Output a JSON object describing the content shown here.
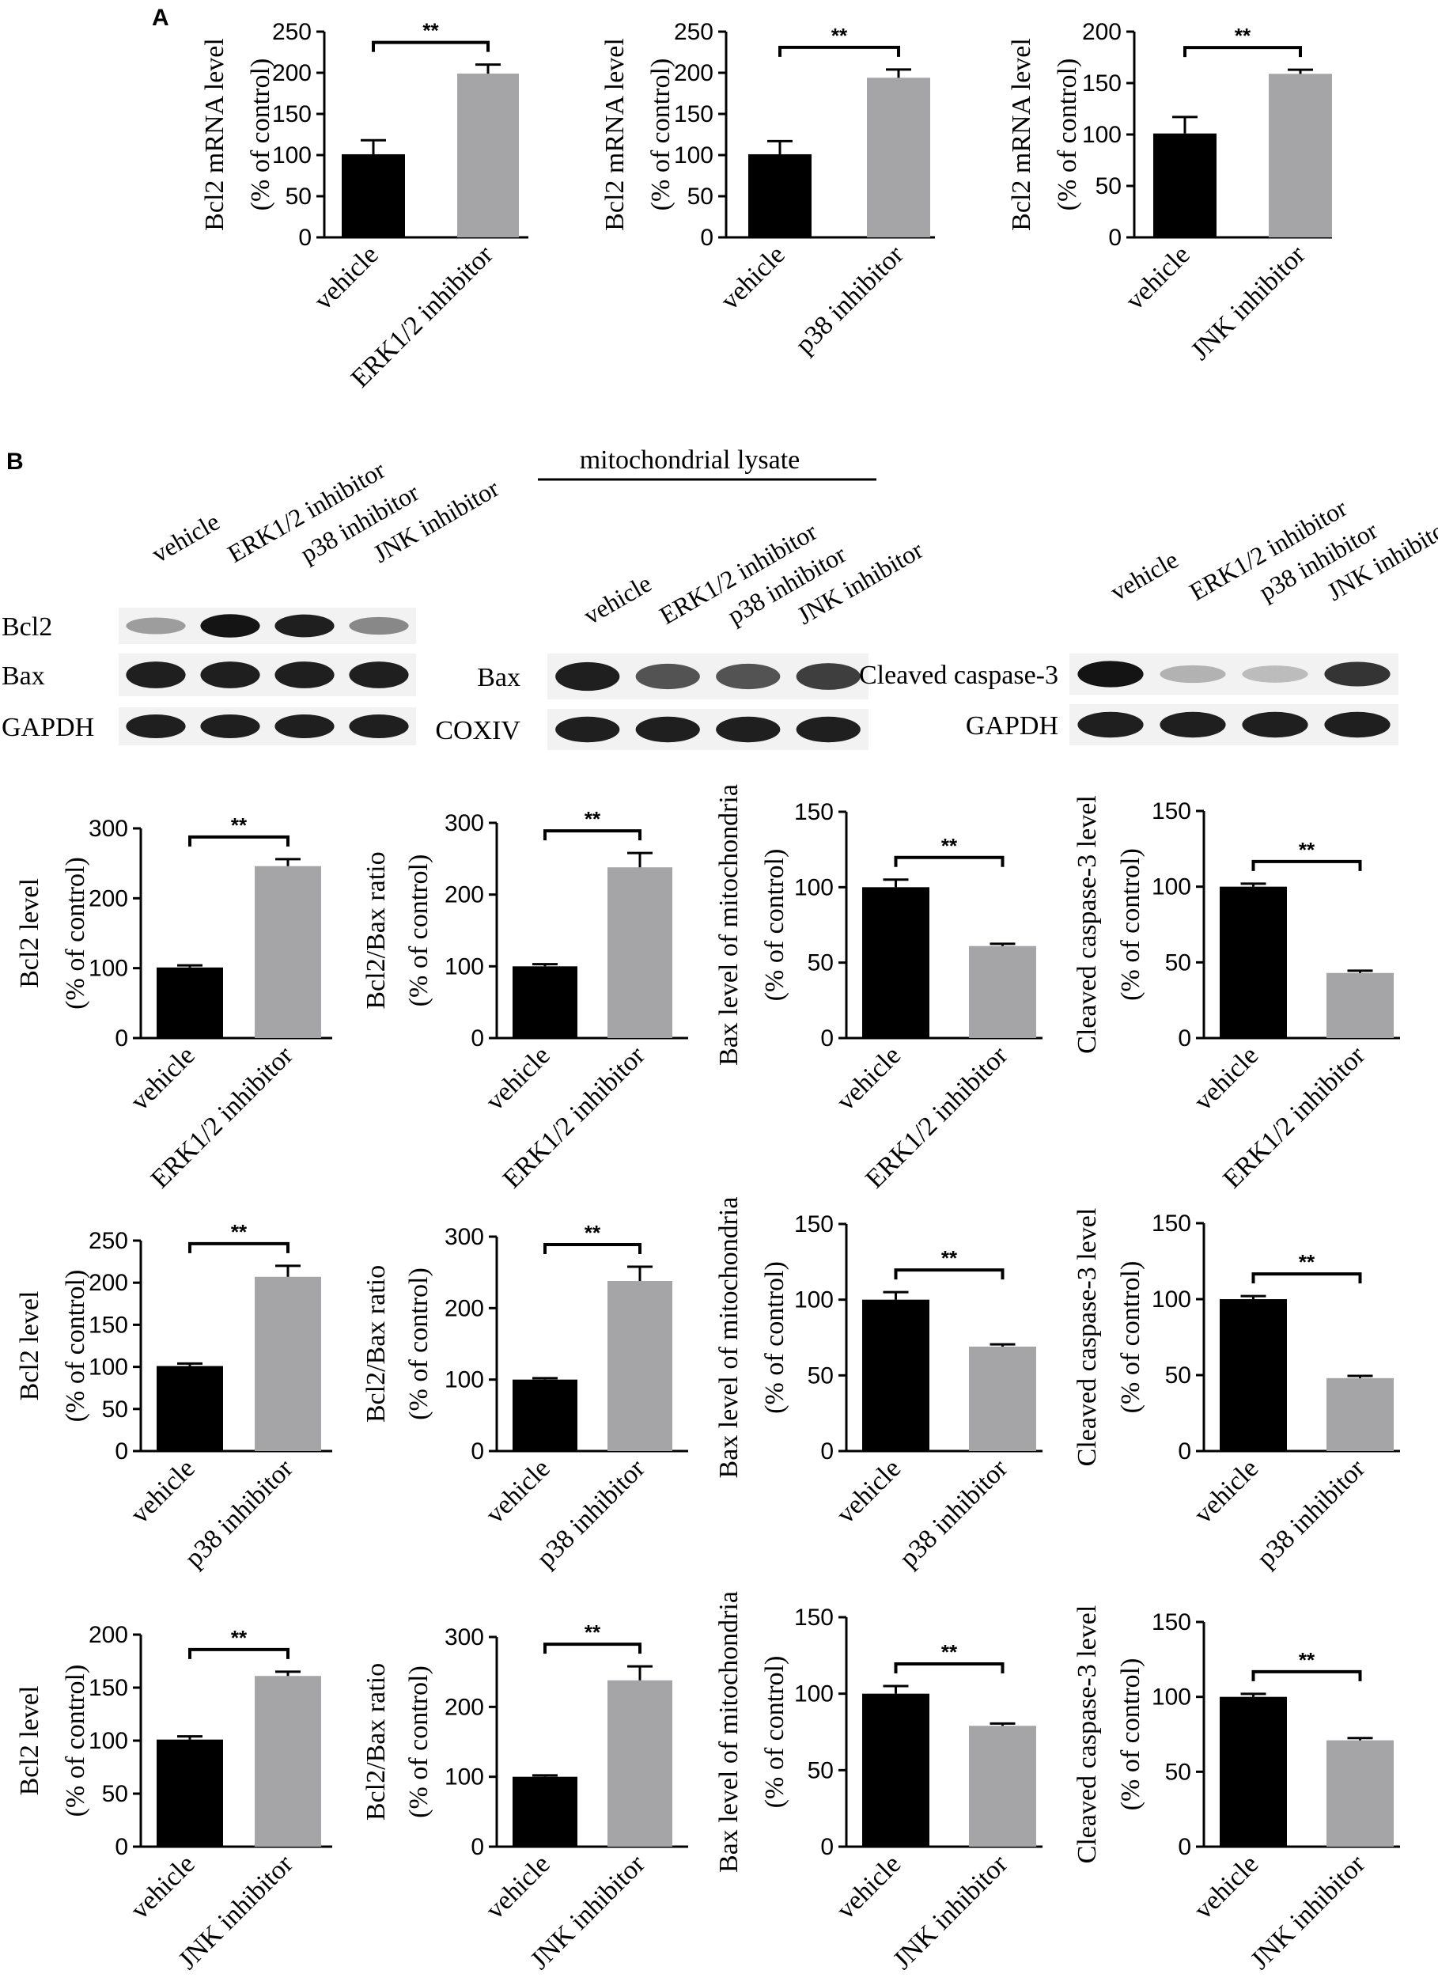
{
  "panels": {
    "A": "A",
    "B": "B"
  },
  "blots": {
    "whole": {
      "lanes": [
        "vehicle",
        "ERK1/2 inhibitor",
        "p38 inhibitor",
        "JNK inhibitor"
      ],
      "rows": [
        {
          "label": "Bcl2",
          "intensity": [
            0.35,
            1.0,
            0.95,
            0.45
          ]
        },
        {
          "label": "Bax",
          "intensity": [
            0.95,
            0.95,
            0.95,
            0.95
          ]
        },
        {
          "label": "GAPDH",
          "intensity": [
            0.95,
            0.95,
            0.95,
            0.95
          ]
        }
      ]
    },
    "mito": {
      "header": "mitochondrial lysate",
      "lanes": [
        "vehicle",
        "ERK1/2 inhibitor",
        "p38 inhibitor",
        "JNK inhibitor"
      ],
      "rows": [
        {
          "label": "Bax",
          "intensity": [
            0.95,
            0.7,
            0.7,
            0.8
          ]
        },
        {
          "label": "COXIV",
          "intensity": [
            0.95,
            0.95,
            0.95,
            0.95
          ]
        }
      ]
    },
    "caspase": {
      "lanes": [
        "vehicle",
        "ERK1/2 inhibitor",
        "p38 inhibitor",
        "JNK inhibitor"
      ],
      "rows": [
        {
          "label": "Cleaved caspase-3",
          "intensity": [
            1.0,
            0.25,
            0.2,
            0.85
          ]
        },
        {
          "label": "GAPDH",
          "intensity": [
            0.95,
            0.95,
            0.95,
            0.95
          ]
        }
      ]
    }
  },
  "chart_data": [
    {
      "type": "bar",
      "categories": [
        "vehicle",
        "ERK1/2 inhibitor"
      ],
      "values": [
        101,
        199
      ],
      "errors": [
        17,
        11
      ],
      "ylabel": "Bcl2 mRNA level",
      "ylabel2": "(% of control)",
      "ylim": [
        0,
        250
      ],
      "yticks": [
        0,
        50,
        100,
        150,
        200,
        250
      ],
      "significance": "**"
    },
    {
      "type": "bar",
      "categories": [
        "vehicle",
        "p38 inhibitor"
      ],
      "values": [
        101,
        194
      ],
      "errors": [
        16,
        10
      ],
      "ylabel": "Bcl2 mRNA level",
      "ylabel2": "(% of control)",
      "ylim": [
        0,
        250
      ],
      "yticks": [
        0,
        50,
        100,
        150,
        200,
        250
      ],
      "significance": "**"
    },
    {
      "type": "bar",
      "categories": [
        "vehicle",
        "JNK inhibitor"
      ],
      "values": [
        101,
        159
      ],
      "errors": [
        16,
        4
      ],
      "ylabel": "Bcl2 mRNA level",
      "ylabel2": "(% of control)",
      "ylim": [
        0,
        200
      ],
      "yticks": [
        0,
        50,
        100,
        150,
        200
      ],
      "significance": "**"
    },
    {
      "type": "bar",
      "categories": [
        "vehicle",
        "ERK1/2 inhibitor"
      ],
      "values": [
        101,
        246
      ],
      "errors": [
        3,
        10
      ],
      "ylabel": "Bcl2 level",
      "ylabel2": "(% of control)",
      "ylim": [
        0,
        300
      ],
      "yticks": [
        0,
        100,
        200,
        300
      ],
      "significance": "**"
    },
    {
      "type": "bar",
      "categories": [
        "vehicle",
        "ERK1/2 inhibitor"
      ],
      "values": [
        100,
        238
      ],
      "errors": [
        3,
        20
      ],
      "ylabel": "Bcl2/Bax ratio",
      "ylabel2": "(% of control)",
      "ylim": [
        0,
        300
      ],
      "yticks": [
        0,
        100,
        200,
        300
      ],
      "significance": "**"
    },
    {
      "type": "bar",
      "categories": [
        "vehicle",
        "ERK1/2 inhibitor"
      ],
      "values": [
        100,
        61
      ],
      "errors": [
        5,
        1.5
      ],
      "ylabel": "Bax level of mitochondria",
      "ylabel2": "(% of control)",
      "ylim": [
        0,
        150
      ],
      "yticks": [
        0,
        50,
        100,
        150
      ],
      "significance": "**"
    },
    {
      "type": "bar",
      "categories": [
        "vehicle",
        "ERK1/2 inhibitor"
      ],
      "values": [
        100,
        43
      ],
      "errors": [
        2,
        1.5
      ],
      "ylabel": "Cleaved caspase-3 level",
      "ylabel2": "(% of control)",
      "ylim": [
        0,
        150
      ],
      "yticks": [
        0,
        50,
        100,
        150
      ],
      "significance": "**"
    },
    {
      "type": "bar",
      "categories": [
        "vehicle",
        "p38 inhibitor"
      ],
      "values": [
        101,
        207
      ],
      "errors": [
        3,
        13
      ],
      "ylabel": "Bcl2 level",
      "ylabel2": "(% of control)",
      "ylim": [
        0,
        250
      ],
      "yticks": [
        0,
        50,
        100,
        150,
        200,
        250
      ],
      "significance": "**"
    },
    {
      "type": "bar",
      "categories": [
        "vehicle",
        "p38 inhibitor"
      ],
      "values": [
        100,
        238
      ],
      "errors": [
        2,
        20
      ],
      "ylabel": "Bcl2/Bax ratio",
      "ylabel2": "(% of control)",
      "ylim": [
        0,
        300
      ],
      "yticks": [
        0,
        100,
        200,
        300
      ],
      "significance": "**"
    },
    {
      "type": "bar",
      "categories": [
        "vehicle",
        "p38 inhibitor"
      ],
      "values": [
        100,
        69
      ],
      "errors": [
        5,
        1.5
      ],
      "ylabel": "Bax level of mitochondria",
      "ylabel2": "(% of control)",
      "ylim": [
        0,
        150
      ],
      "yticks": [
        0,
        50,
        100,
        150
      ],
      "significance": "**"
    },
    {
      "type": "bar",
      "categories": [
        "vehicle",
        "p38 inhibitor"
      ],
      "values": [
        100,
        48
      ],
      "errors": [
        2,
        1.5
      ],
      "ylabel": "Cleaved caspase-3 level",
      "ylabel2": "(% of control)",
      "ylim": [
        0,
        150
      ],
      "yticks": [
        0,
        50,
        100,
        150
      ],
      "significance": "**"
    },
    {
      "type": "bar",
      "categories": [
        "vehicle",
        "JNK inhibitor"
      ],
      "values": [
        101,
        161
      ],
      "errors": [
        3,
        4
      ],
      "ylabel": "Bcl2 level",
      "ylabel2": "(% of control)",
      "ylim": [
        0,
        200
      ],
      "yticks": [
        0,
        50,
        100,
        150,
        200
      ],
      "significance": "**"
    },
    {
      "type": "bar",
      "categories": [
        "vehicle",
        "JNK inhibitor"
      ],
      "values": [
        100,
        238
      ],
      "errors": [
        2,
        20
      ],
      "ylabel": "Bcl2/Bax ratio",
      "ylabel2": "(% of control)",
      "ylim": [
        0,
        300
      ],
      "yticks": [
        0,
        100,
        200,
        300
      ],
      "significance": "**"
    },
    {
      "type": "bar",
      "categories": [
        "vehicle",
        "JNK inhibitor"
      ],
      "values": [
        100,
        79
      ],
      "errors": [
        5,
        1.5
      ],
      "ylabel": "Bax level of mitochondria",
      "ylabel2": "(% of control)",
      "ylim": [
        0,
        150
      ],
      "yticks": [
        0,
        50,
        100,
        150
      ],
      "significance": "**"
    },
    {
      "type": "bar",
      "categories": [
        "vehicle",
        "JNK inhibitor"
      ],
      "values": [
        100,
        71
      ],
      "errors": [
        2,
        1.5
      ],
      "ylabel": "Cleaved caspase-3 level",
      "ylabel2": "(% of control)",
      "ylim": [
        0,
        150
      ],
      "yticks": [
        0,
        50,
        100,
        150
      ],
      "significance": "**"
    }
  ]
}
